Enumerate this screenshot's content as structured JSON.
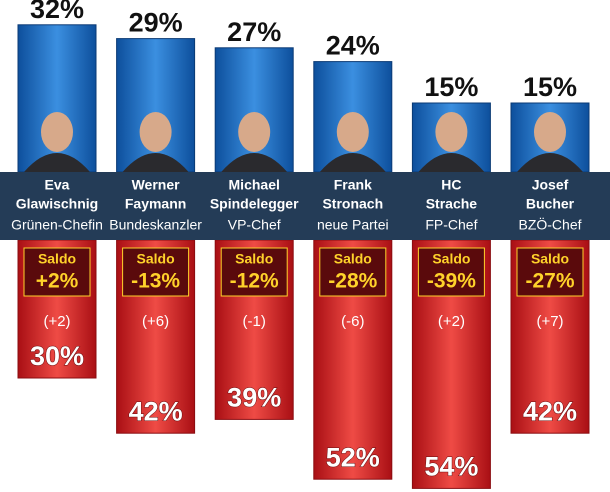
{
  "chart_data": {
    "type": "diverging-bar",
    "people": [
      {
        "first": "Eva",
        "last": "Glawischnig",
        "role": "Grünen-Chefin"
      },
      {
        "first": "Werner",
        "last": "Faymann",
        "role": "Bundeskanzler"
      },
      {
        "first": "Michael",
        "last": "Spindelegger",
        "role": "VP-Chef"
      },
      {
        "first": "Frank",
        "last": "Stronach",
        "role": "neue Partei"
      },
      {
        "first": "HC",
        "last": "Strache",
        "role": "FP-Chef"
      },
      {
        "first": "Josef",
        "last": "Bucher",
        "role": "BZÖ-Chef"
      }
    ],
    "positive": {
      "color": "#1f6fc0",
      "values": [
        32,
        29,
        27,
        24,
        15,
        15
      ],
      "value_labels": [
        "32%",
        "29%",
        "27%",
        "24%",
        "15%",
        "15%"
      ]
    },
    "negative": {
      "color": "#d8262b",
      "values": [
        30,
        42,
        39,
        52,
        54,
        42
      ],
      "value_labels": [
        "30%",
        "42%",
        "39%",
        "52%",
        "54%",
        "42%"
      ]
    },
    "saldo_title": "Saldo",
    "saldo": {
      "values": [
        2,
        -13,
        -12,
        -28,
        -39,
        -27
      ],
      "value_labels": [
        "+2%",
        "-13%",
        "-12%",
        "-28%",
        "-39%",
        "-27%"
      ]
    },
    "change": {
      "values": [
        2,
        6,
        -1,
        -6,
        2,
        7
      ],
      "value_labels": [
        "(+2)",
        "(+6)",
        "(-1)",
        "(-6)",
        "(+2)",
        "(+7)"
      ]
    }
  }
}
